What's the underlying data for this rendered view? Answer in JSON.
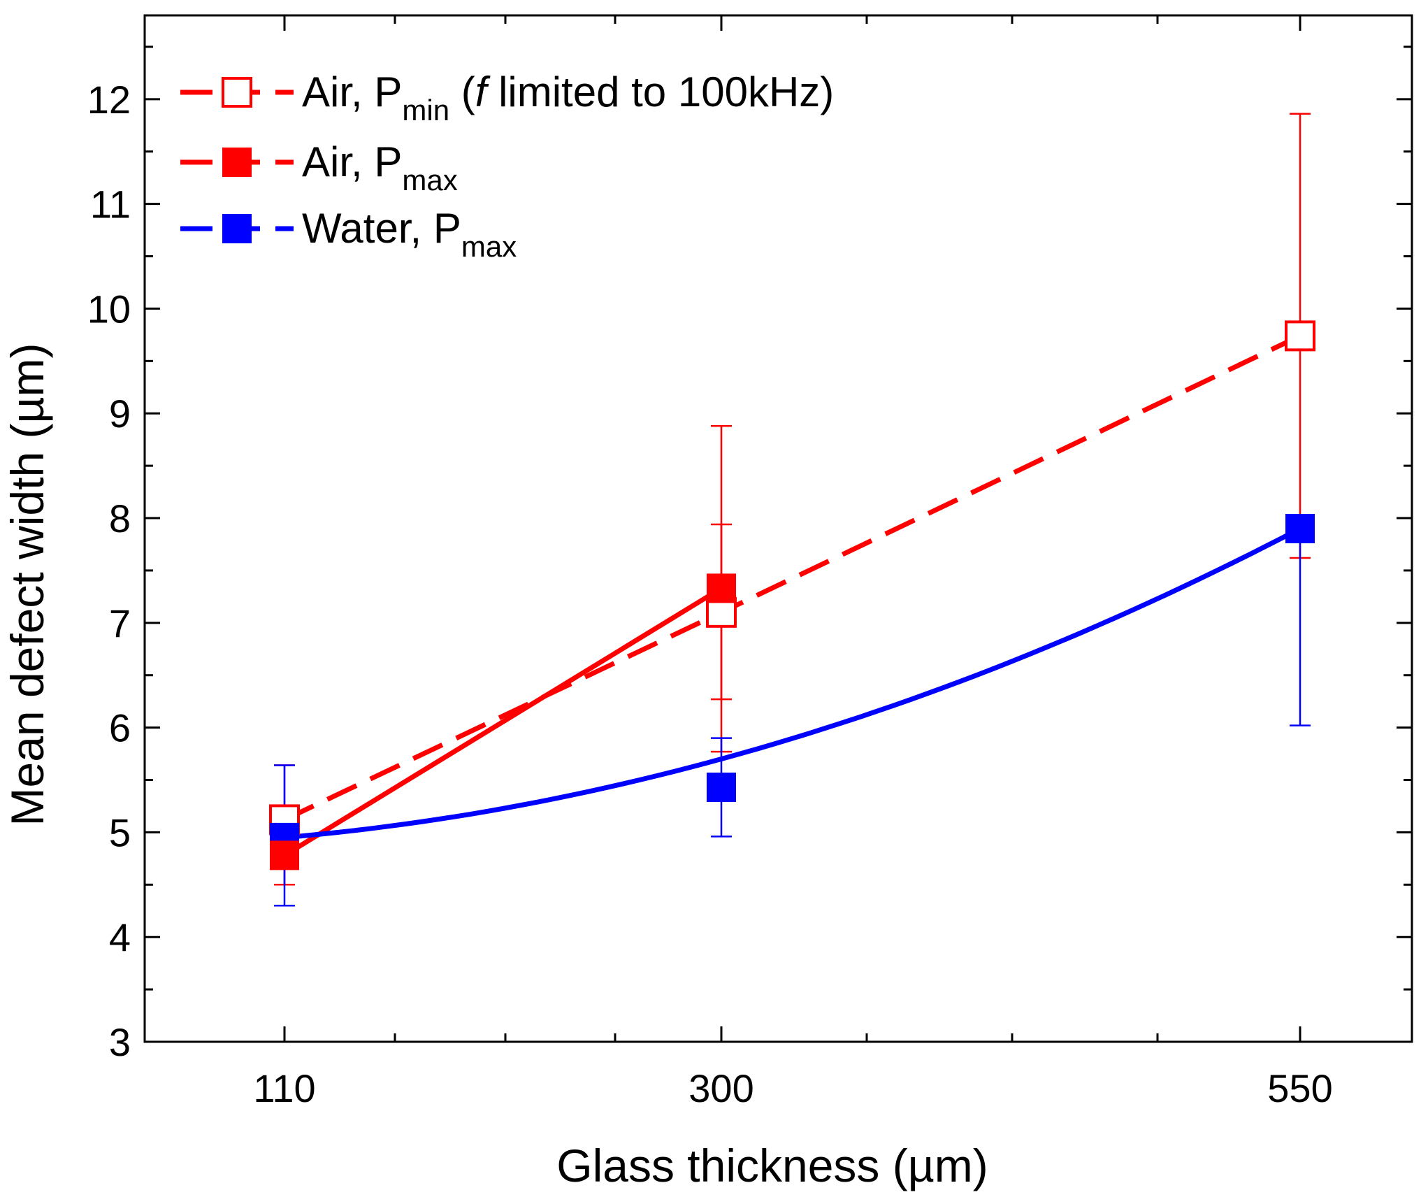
{
  "chart_data": {
    "type": "line",
    "xlabel": "Glass thickness (µm)",
    "ylabel": "Mean defect width (µm)",
    "x_ticks": [
      "110",
      "300",
      "550"
    ],
    "y_ticks": [
      "3",
      "4",
      "5",
      "6",
      "7",
      "8",
      "9",
      "10",
      "11",
      "12"
    ],
    "ylim": [
      3,
      12.8
    ],
    "grid": false,
    "legend_position": "top-left",
    "series": [
      {
        "name": "Air, Pmin (f limited to 100kHz)",
        "legend_main": "Air, P",
        "legend_sub": "min",
        "legend_rest_pre": " (",
        "legend_italic": "f",
        "legend_rest_post": " limited to 100kHz)",
        "color": "#ff0000",
        "marker": "open-square",
        "line_style": "dashed",
        "x": [
          "110",
          "300",
          "550"
        ],
        "y": [
          5.12,
          7.1,
          9.74
        ],
        "err_low": [
          4.5,
          6.27,
          7.62
        ],
        "err_high": [
          5.64,
          7.94,
          11.86
        ]
      },
      {
        "name": "Air, Pmax",
        "legend_main": "Air, P",
        "legend_sub": "max",
        "color": "#ff0000",
        "marker": "filled-square",
        "line_style": "solid",
        "x": [
          "110",
          "300"
        ],
        "y": [
          4.78,
          7.33
        ],
        "err_low": [
          4.5,
          5.77
        ],
        "err_high": [
          5.0,
          8.88
        ]
      },
      {
        "name": "Water, Pmax",
        "legend_main": "Water, P",
        "legend_sub": "max",
        "color": "#0000ff",
        "marker": "filled-square",
        "line_style": "solid",
        "x": [
          "110",
          "300",
          "550"
        ],
        "y": [
          4.95,
          5.43,
          7.9
        ],
        "err_low": [
          4.3,
          4.96,
          6.02
        ],
        "err_high": [
          5.64,
          5.9,
          8.0
        ],
        "fit_y": [
          4.95,
          5.7,
          7.9
        ]
      }
    ]
  }
}
